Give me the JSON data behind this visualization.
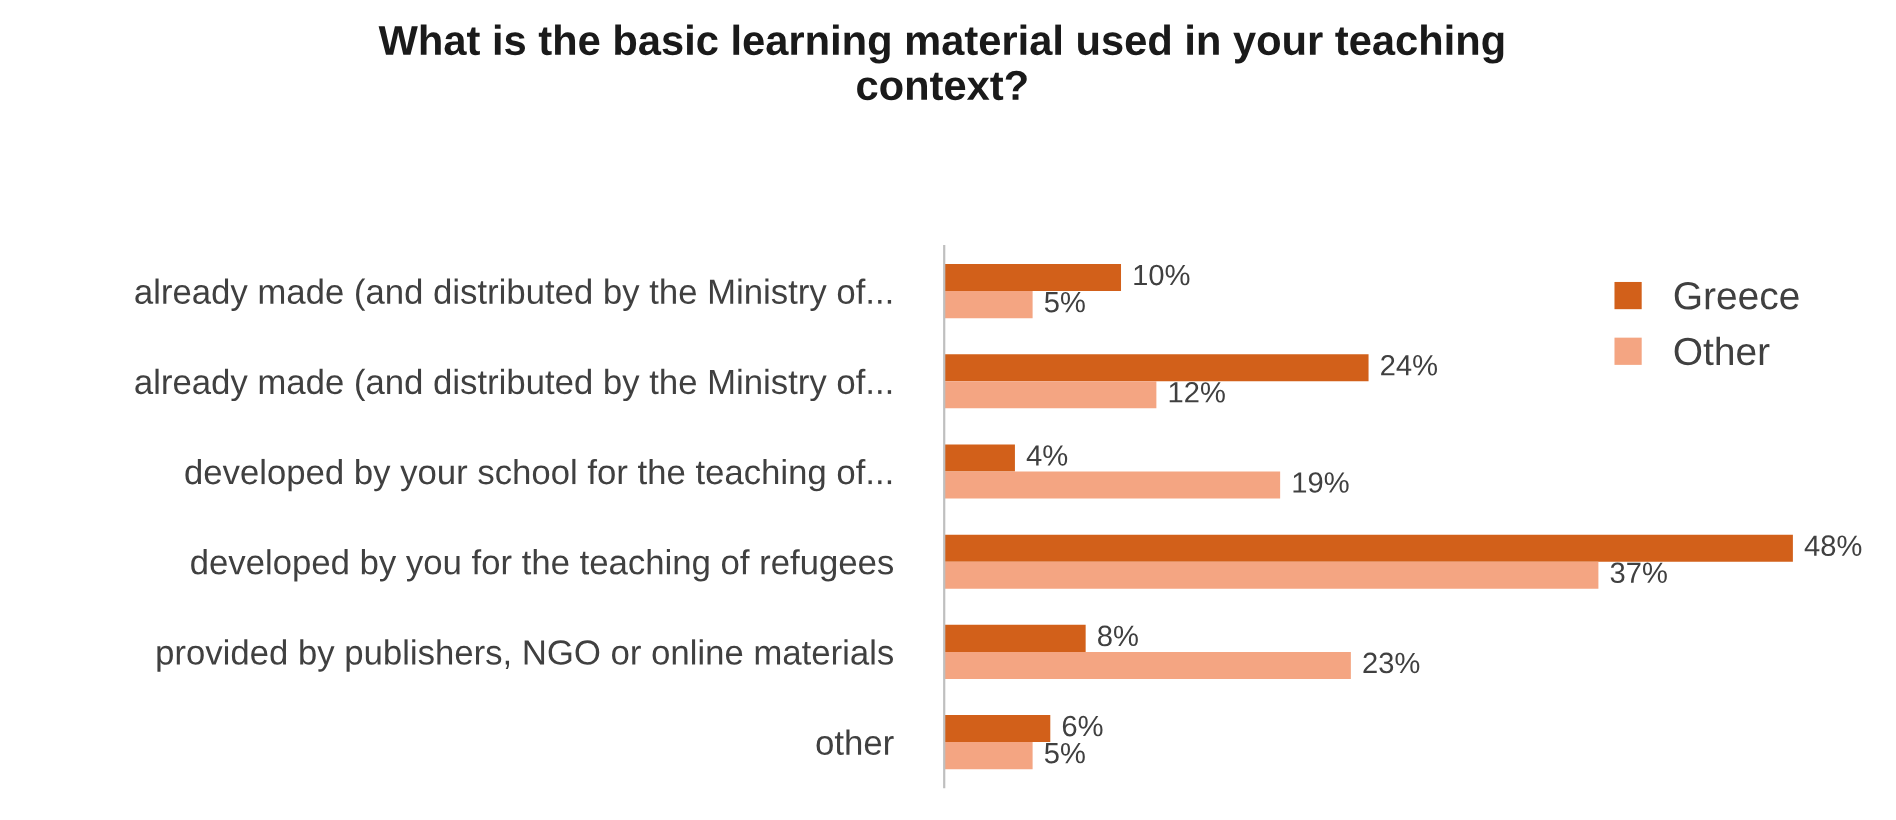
{
  "chart_data": {
    "type": "bar",
    "orientation": "horizontal",
    "title": "What is the basic learning material used in your teaching\ncontext?",
    "categories": [
      "already made (and distributed by the Ministry of...",
      "already made (and distributed by the Ministry of...",
      "developed by your school for the teaching of...",
      "developed by you for the teaching of refugees",
      "provided by publishers, NGO or online materials",
      "other"
    ],
    "series": [
      {
        "name": "Greece",
        "color": "#d2601a",
        "values": [
          10,
          24,
          4,
          48,
          8,
          6
        ],
        "value_labels": [
          "10%",
          "24%",
          "4%",
          "48%",
          "8%",
          "6%"
        ]
      },
      {
        "name": "Other",
        "color": "#f4a582",
        "values": [
          5,
          12,
          19,
          37,
          23,
          5
        ],
        "value_labels": [
          "5%",
          "12%",
          "19%",
          "37%",
          "23%",
          "5%"
        ]
      }
    ],
    "legend": "top right",
    "grid": false
  }
}
